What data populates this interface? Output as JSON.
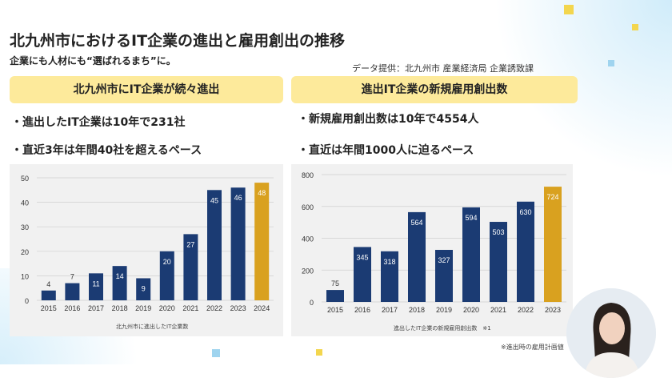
{
  "slide": {
    "title": "北九州市におけるIT企業の進出と雇用創出の推移",
    "subtitle": "企業にも人材にも“選ばれるまち”に。",
    "source": "データ提供：北九州市 産業経済局 企業誘致課"
  },
  "left_panel": {
    "header": "北九州市にIT企業が続々進出",
    "bullets": [
      "・進出したIT企業は10年で231社",
      "・直近3年は年間40社を超えるペース"
    ],
    "caption": "北九州市に進出したIT企業数"
  },
  "right_panel": {
    "header": "進出IT企業の新規雇用創出数",
    "bullets": [
      "・新規雇用創出数は10年で4554人",
      "・直近は年間1000人に迫るペース"
    ],
    "caption": "進出したIT企業の新規雇用創出数　※1",
    "note": "※進出時の雇用計画値"
  },
  "colors": {
    "bar": "#1b3b73",
    "highlight": "#d9a11f",
    "header": "#fdea9b"
  },
  "chart_data": [
    {
      "type": "bar",
      "title": "北九州市に進出したIT企業数",
      "categories": [
        "2015",
        "2016",
        "2017",
        "2018",
        "2019",
        "2020",
        "2021",
        "2022",
        "2023",
        "2024"
      ],
      "values": [
        4,
        7,
        11,
        14,
        9,
        20,
        27,
        45,
        46,
        48
      ],
      "ylim": [
        0,
        50
      ],
      "yticks": [
        0,
        10,
        20,
        30,
        40,
        50
      ],
      "highlight_index": 9
    },
    {
      "type": "bar",
      "title": "進出したIT企業の新規雇用創出数",
      "categories": [
        "2015",
        "2016",
        "2017",
        "2018",
        "2019",
        "2020",
        "2021",
        "2022",
        "2023"
      ],
      "values": [
        75,
        345,
        318,
        564,
        327,
        594,
        503,
        630,
        724
      ],
      "ylim": [
        0,
        800
      ],
      "yticks": [
        0,
        200,
        400,
        600,
        800
      ],
      "highlight_index": 8
    }
  ]
}
